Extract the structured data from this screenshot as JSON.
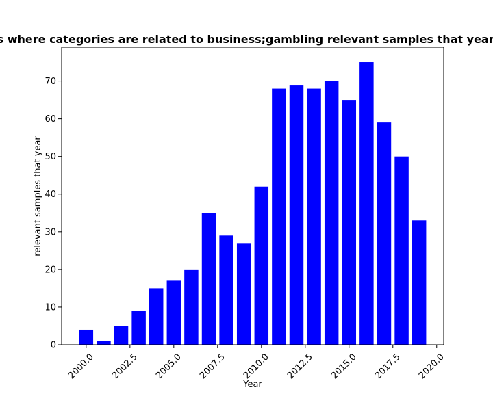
{
  "chart_data": {
    "type": "bar",
    "title": "Number of samples where categories are related to business;gambling relevant samples that year in privacy policies",
    "xlabel": "Year",
    "ylabel": "relevant samples that year",
    "bar_color": "#0000ff",
    "x": [
      2000,
      2001,
      2002,
      2003,
      2004,
      2005,
      2006,
      2007,
      2008,
      2009,
      2010,
      2011,
      2012,
      2013,
      2014,
      2015,
      2016,
      2017,
      2018,
      2019
    ],
    "values": [
      4,
      1,
      5,
      9,
      15,
      17,
      20,
      35,
      29,
      27,
      42,
      68,
      69,
      68,
      70,
      65,
      75,
      59,
      50,
      33
    ],
    "xlim": [
      1998.6,
      2020.4
    ],
    "ylim": [
      0,
      79
    ],
    "xticks": [
      2000.0,
      2002.5,
      2005.0,
      2007.5,
      2010.0,
      2012.5,
      2015.0,
      2017.5,
      2020.0
    ],
    "xtick_labels": [
      "2000.0",
      "2002.5",
      "2005.0",
      "2007.5",
      "2010.0",
      "2012.5",
      "2015.0",
      "2017.5",
      "2020.0"
    ],
    "yticks": [
      0,
      10,
      20,
      30,
      40,
      50,
      60,
      70
    ],
    "ytick_labels": [
      "0",
      "10",
      "20",
      "30",
      "40",
      "50",
      "60",
      "70"
    ],
    "grid": false,
    "legend": "none"
  }
}
